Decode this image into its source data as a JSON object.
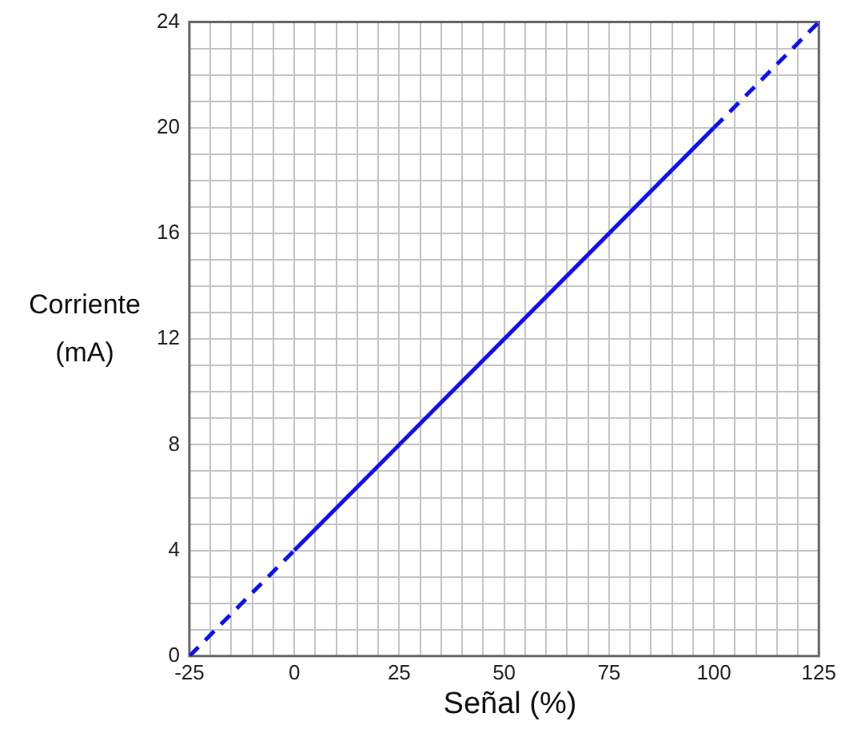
{
  "chart_data": {
    "type": "line",
    "xlabel": "Señal (%)",
    "ylabel": "Corriente (mA)",
    "xlim": [
      -25,
      125
    ],
    "ylim": [
      0,
      24
    ],
    "xticks": [
      -25,
      {
        "value": -20,
        "label": null
      },
      {
        "value": -15,
        "label": null
      },
      {
        "value": -10,
        "label": null
      },
      {
        "value": -5,
        "label": null
      },
      0,
      {
        "value": 5,
        "label": null
      },
      {
        "value": 10,
        "label": null
      },
      {
        "value": 15,
        "label": null
      },
      {
        "value": 20,
        "label": null
      },
      25,
      {
        "value": 30,
        "label": null
      },
      {
        "value": 35,
        "label": null
      },
      {
        "value": 40,
        "label": null
      },
      {
        "value": 45,
        "label": null
      },
      50,
      {
        "value": 55,
        "label": null
      },
      {
        "value": 60,
        "label": null
      },
      {
        "value": 65,
        "label": null
      },
      {
        "value": 70,
        "label": null
      },
      75,
      {
        "value": 80,
        "label": null
      },
      {
        "value": 85,
        "label": null
      },
      {
        "value": 90,
        "label": null
      },
      {
        "value": 95,
        "label": null
      },
      100,
      {
        "value": 105,
        "label": null
      },
      {
        "value": 110,
        "label": null
      },
      {
        "value": 115,
        "label": null
      },
      {
        "value": 120,
        "label": null
      },
      125
    ],
    "yticks": [
      0,
      {
        "value": 1,
        "label": null
      },
      {
        "value": 2,
        "label": null
      },
      {
        "value": 3,
        "label": null
      },
      4,
      {
        "value": 5,
        "label": null
      },
      {
        "value": 6,
        "label": null
      },
      {
        "value": 7,
        "label": null
      },
      8,
      {
        "value": 9,
        "label": null
      },
      {
        "value": 10,
        "label": null
      },
      {
        "value": 11,
        "label": null
      },
      12,
      {
        "value": 13,
        "label": null
      },
      {
        "value": 14,
        "label": null
      },
      {
        "value": 15,
        "label": null
      },
      16,
      {
        "value": 17,
        "label": null
      },
      {
        "value": 18,
        "label": null
      },
      {
        "value": 19,
        "label": null
      },
      20,
      {
        "value": 21,
        "label": null
      },
      {
        "value": 22,
        "label": null
      },
      {
        "value": 23,
        "label": null
      },
      24
    ],
    "grid": true,
    "marker": "none",
    "series": [
      {
        "color": "#1010ee",
        "line_style": "dashed",
        "x": [
          -25,
          0
        ],
        "values": [
          0,
          4
        ]
      },
      {
        "color": "#1010ee",
        "line_style": "solid",
        "x": [
          0,
          100
        ],
        "values": [
          4,
          20
        ]
      },
      {
        "color": "#1010ee",
        "line_style": "dashed",
        "x": [
          100,
          125
        ],
        "values": [
          20,
          24
        ]
      }
    ]
  }
}
